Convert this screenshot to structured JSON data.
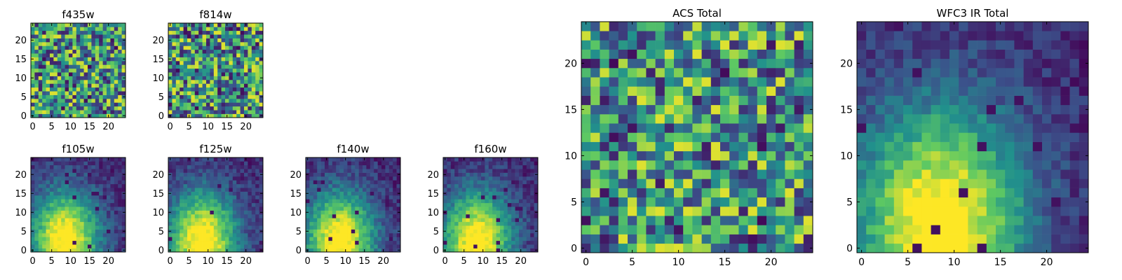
{
  "colormap": [
    "#440154",
    "#3b528b",
    "#21918c",
    "#5ec962",
    "#fde725"
  ],
  "chart_data": [
    {
      "type": "heatmap",
      "title": "f435w",
      "grid": false,
      "pattern": "noise",
      "shape": [
        25,
        25
      ],
      "xlim": [
        0,
        24
      ],
      "ylim": [
        0,
        24
      ],
      "xticks": [
        0,
        5,
        10,
        15,
        20
      ],
      "yticks": [
        0,
        5,
        10,
        15,
        20
      ],
      "xtick_labels": [
        "0",
        "5",
        "10",
        "15",
        "20"
      ],
      "ytick_labels": [
        "0",
        "5",
        "10",
        "15",
        "20"
      ],
      "seed": 11
    },
    {
      "type": "heatmap",
      "title": "f814w",
      "grid": false,
      "pattern": "noise",
      "shape": [
        25,
        25
      ],
      "xlim": [
        0,
        24
      ],
      "ylim": [
        0,
        24
      ],
      "xticks": [
        0,
        5,
        10,
        15,
        20
      ],
      "yticks": [
        0,
        5,
        10,
        15,
        20
      ],
      "xtick_labels": [
        "0",
        "5",
        "10",
        "15",
        "20"
      ],
      "ytick_labels": [
        "0",
        "5",
        "10",
        "15",
        "20"
      ],
      "seed": 23
    },
    {
      "type": "heatmap",
      "title": "f105w",
      "grid": false,
      "pattern": "source",
      "shape": [
        25,
        25
      ],
      "xlim": [
        0,
        24
      ],
      "ylim": [
        0,
        24
      ],
      "xticks": [
        0,
        5,
        10,
        15,
        20
      ],
      "yticks": [
        0,
        5,
        10,
        15,
        20
      ],
      "xtick_labels": [
        "0",
        "5",
        "10",
        "15",
        "20"
      ],
      "ytick_labels": [
        "0",
        "5",
        "10",
        "15",
        "20"
      ],
      "seed": 37
    },
    {
      "type": "heatmap",
      "title": "f125w",
      "grid": false,
      "pattern": "source",
      "shape": [
        25,
        25
      ],
      "xlim": [
        0,
        24
      ],
      "ylim": [
        0,
        24
      ],
      "xticks": [
        0,
        5,
        10,
        15,
        20
      ],
      "yticks": [
        0,
        5,
        10,
        15,
        20
      ],
      "xtick_labels": [
        "0",
        "5",
        "10",
        "15",
        "20"
      ],
      "ytick_labels": [
        "0",
        "5",
        "10",
        "15",
        "20"
      ],
      "seed": 41
    },
    {
      "type": "heatmap",
      "title": "f140w",
      "grid": false,
      "pattern": "source",
      "shape": [
        25,
        25
      ],
      "xlim": [
        0,
        24
      ],
      "ylim": [
        0,
        24
      ],
      "xticks": [
        0,
        5,
        10,
        15,
        20
      ],
      "yticks": [
        0,
        5,
        10,
        15,
        20
      ],
      "xtick_labels": [
        "0",
        "5",
        "10",
        "15",
        "20"
      ],
      "ytick_labels": [
        "0",
        "5",
        "10",
        "15",
        "20"
      ],
      "seed": 53
    },
    {
      "type": "heatmap",
      "title": "f160w",
      "grid": false,
      "pattern": "source",
      "shape": [
        25,
        25
      ],
      "xlim": [
        0,
        24
      ],
      "ylim": [
        0,
        24
      ],
      "xticks": [
        0,
        5,
        10,
        15,
        20
      ],
      "yticks": [
        0,
        5,
        10,
        15,
        20
      ],
      "xtick_labels": [
        "0",
        "5",
        "10",
        "15",
        "20"
      ],
      "ytick_labels": [
        "0",
        "5",
        "10",
        "15",
        "20"
      ],
      "seed": 67
    },
    {
      "type": "heatmap",
      "title": "ACS Total",
      "grid": false,
      "pattern": "noise",
      "shape": [
        25,
        25
      ],
      "xlim": [
        0,
        24
      ],
      "ylim": [
        0,
        24
      ],
      "xticks": [
        0,
        5,
        10,
        15,
        20
      ],
      "yticks": [
        0,
        5,
        10,
        15,
        20
      ],
      "xtick_labels": [
        "0",
        "5",
        "10",
        "15",
        "20"
      ],
      "ytick_labels": [
        "0",
        "5",
        "10",
        "15",
        "20"
      ],
      "seed": 79
    },
    {
      "type": "heatmap",
      "title": "WFC3 IR Total",
      "grid": false,
      "pattern": "source",
      "shape": [
        25,
        25
      ],
      "xlim": [
        0,
        24
      ],
      "ylim": [
        0,
        24
      ],
      "xticks": [
        0,
        5,
        10,
        15,
        20
      ],
      "yticks": [
        0,
        5,
        10,
        15,
        20
      ],
      "xtick_labels": [
        "0",
        "5",
        "10",
        "15",
        "20"
      ],
      "ytick_labels": [
        "0",
        "5",
        "10",
        "15",
        "20"
      ],
      "seed": 97
    }
  ]
}
